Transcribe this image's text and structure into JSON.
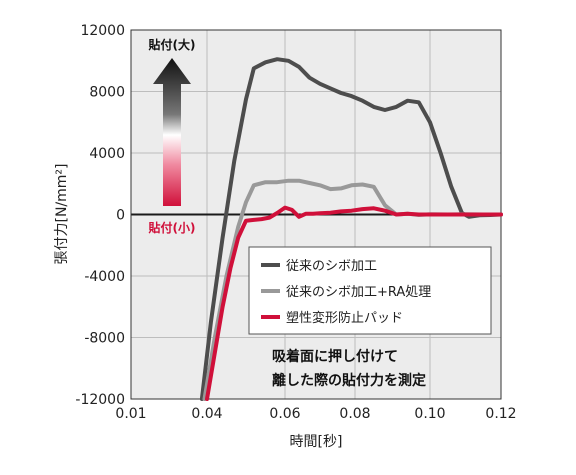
{
  "chart_data": {
    "type": "line",
    "xlabel": "時間[秒]",
    "ylabel": "張付力[N/mm²]",
    "xlim": [
      0.01,
      0.12
    ],
    "ylim": [
      -12000,
      12000
    ],
    "xticks": [
      "0.01",
      "0.04",
      "0.06",
      "0.08",
      "0.10",
      "0.12"
    ],
    "xtick_values": [
      0.01,
      0.04,
      0.06,
      0.08,
      0.1,
      0.12
    ],
    "yticks": [
      "12000",
      "8000",
      "4000",
      "0",
      "-4000",
      "-8000",
      "-12000"
    ],
    "ytick_values": [
      12000,
      8000,
      4000,
      0,
      -4000,
      -8000,
      -12000
    ],
    "grid": true,
    "legend_position": "lower-right",
    "series": [
      {
        "name": "従来のシボ加工",
        "color": "#4d4d4d",
        "x": [
          0.038,
          0.041,
          0.044,
          0.047,
          0.05,
          0.052,
          0.055,
          0.058,
          0.061,
          0.064,
          0.067,
          0.07,
          0.073,
          0.076,
          0.079,
          0.082,
          0.085,
          0.088,
          0.091,
          0.094,
          0.097,
          0.1,
          0.103,
          0.106,
          0.109,
          0.111,
          0.114,
          0.117,
          0.12
        ],
        "values": [
          -12000,
          -7000,
          -1500,
          3500,
          7500,
          9500,
          9900,
          10100,
          10000,
          9600,
          8900,
          8500,
          8200,
          7900,
          7700,
          7400,
          7000,
          6800,
          7000,
          7400,
          7300,
          6000,
          4000,
          1800,
          100,
          -150,
          -50,
          -30,
          0
        ]
      },
      {
        "name": "従来のシボ加工+RA処理",
        "color": "#999999",
        "x": [
          0.039,
          0.042,
          0.045,
          0.048,
          0.05,
          0.052,
          0.055,
          0.058,
          0.061,
          0.064,
          0.067,
          0.07,
          0.073,
          0.076,
          0.079,
          0.082,
          0.085,
          0.088,
          0.091,
          0.094,
          0.097,
          0.1,
          0.105,
          0.11,
          0.115,
          0.12
        ],
        "values": [
          -12000,
          -8000,
          -4000,
          -800,
          800,
          1900,
          2100,
          2100,
          2200,
          2200,
          2050,
          1900,
          1650,
          1700,
          1900,
          1950,
          1800,
          600,
          0,
          50,
          -30,
          20,
          0,
          20,
          0,
          0
        ]
      },
      {
        "name": "塑性変形防止パッド",
        "color": "#d0103a",
        "x": [
          0.04,
          0.042,
          0.044,
          0.046,
          0.048,
          0.05,
          0.052,
          0.054,
          0.056,
          0.058,
          0.06,
          0.062,
          0.064,
          0.066,
          0.068,
          0.07,
          0.073,
          0.076,
          0.079,
          0.082,
          0.085,
          0.088,
          0.091,
          0.094,
          0.097,
          0.1,
          0.105,
          0.11,
          0.115,
          0.12
        ],
        "values": [
          -12000,
          -9000,
          -6000,
          -3500,
          -1500,
          -400,
          -350,
          -300,
          -200,
          100,
          450,
          300,
          -150,
          50,
          50,
          80,
          120,
          200,
          250,
          350,
          400,
          250,
          0,
          50,
          0,
          0,
          0,
          0,
          0,
          0
        ]
      }
    ]
  },
  "labels": {
    "zero_line_label": "0",
    "arrow_top": "貼付(大)",
    "arrow_bottom": "貼付(小)"
  },
  "annotation": {
    "line1": "吸着面に押し付けて",
    "line2": "離した際の貼付力を測定"
  },
  "colors": {
    "plot_bg": "#ececec",
    "grid": "#bdbdbd",
    "accent_red": "#d0103a",
    "dark": "#333333"
  }
}
